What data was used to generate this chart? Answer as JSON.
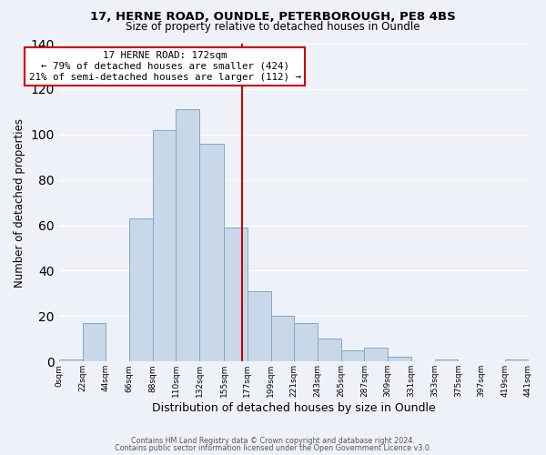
{
  "title1": "17, HERNE ROAD, OUNDLE, PETERBOROUGH, PE8 4BS",
  "title2": "Size of property relative to detached houses in Oundle",
  "xlabel": "Distribution of detached houses by size in Oundle",
  "ylabel": "Number of detached properties",
  "bar_color": "#c8d8e8",
  "bar_edgecolor": "#7aaac8",
  "bin_edges": [
    0,
    22,
    44,
    66,
    88,
    110,
    132,
    155,
    177,
    199,
    221,
    243,
    265,
    287,
    309,
    331,
    353,
    375,
    397,
    419,
    441
  ],
  "bar_heights": [
    1,
    17,
    0,
    63,
    102,
    111,
    96,
    59,
    31,
    20,
    17,
    10,
    5,
    6,
    2,
    0,
    1,
    0,
    0,
    1
  ],
  "tick_labels": [
    "0sqm",
    "22sqm",
    "44sqm",
    "66sqm",
    "88sqm",
    "110sqm",
    "132sqm",
    "155sqm",
    "177sqm",
    "199sqm",
    "221sqm",
    "243sqm",
    "265sqm",
    "287sqm",
    "309sqm",
    "331sqm",
    "353sqm",
    "375sqm",
    "397sqm",
    "419sqm",
    "441sqm"
  ],
  "vline_x": 172,
  "vline_color": "#cc0000",
  "annotation_title": "17 HERNE ROAD: 172sqm",
  "annotation_line1": "← 79% of detached houses are smaller (424)",
  "annotation_line2": "21% of semi-detached houses are larger (112) →",
  "annotation_box_color": "#ffffff",
  "annotation_box_edgecolor": "#cc0000",
  "ylim": [
    0,
    140
  ],
  "footer1": "Contains HM Land Registry data © Crown copyright and database right 2024.",
  "footer2": "Contains public sector information licensed under the Open Government Licence v3.0.",
  "background_color": "#eef2f8"
}
